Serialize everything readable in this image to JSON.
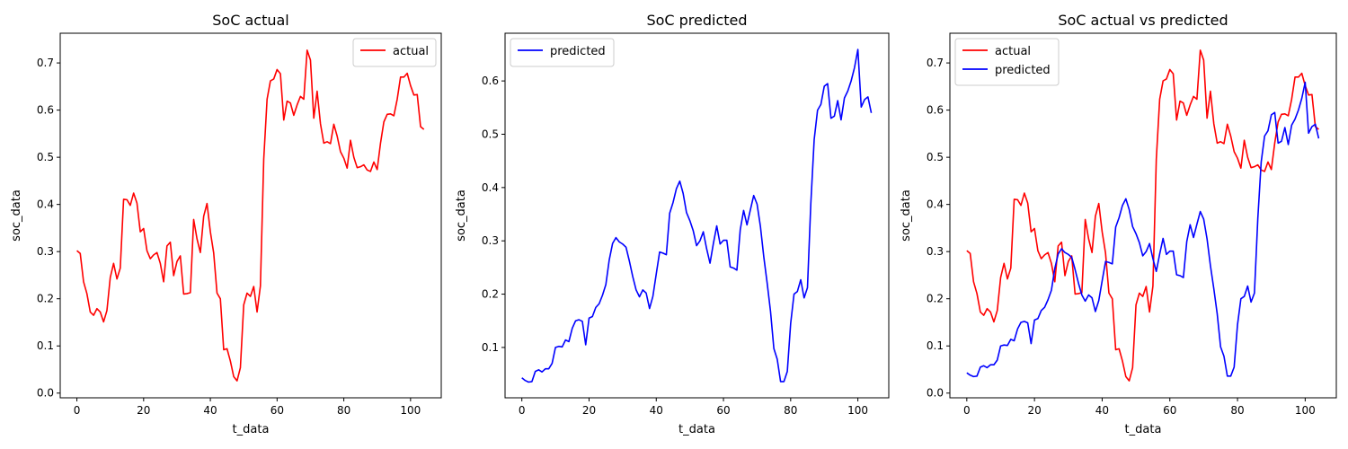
{
  "chart_data": [
    {
      "type": "line",
      "title": "SoC actual",
      "xlabel": "t_data",
      "ylabel": "soc_data",
      "xlim": [
        -5,
        109.2
      ],
      "ylim": [
        -0.01,
        0.763
      ],
      "xticks": [
        0,
        20,
        40,
        60,
        80,
        100
      ],
      "yticks": [
        0.0,
        0.1,
        0.2,
        0.3,
        0.4,
        0.5,
        0.6,
        0.7
      ],
      "grid": false,
      "legend_position": "top-right",
      "series": [
        {
          "name": "actual",
          "color": "#ff0000",
          "values": [
            0.302,
            0.296,
            0.236,
            0.211,
            0.172,
            0.165,
            0.179,
            0.172,
            0.151,
            0.175,
            0.245,
            0.275,
            0.242,
            0.265,
            0.411,
            0.41,
            0.398,
            0.424,
            0.403,
            0.342,
            0.349,
            0.302,
            0.285,
            0.293,
            0.298,
            0.275,
            0.236,
            0.312,
            0.32,
            0.249,
            0.279,
            0.291,
            0.21,
            0.211,
            0.213,
            0.368,
            0.327,
            0.298,
            0.375,
            0.402,
            0.342,
            0.297,
            0.212,
            0.2,
            0.092,
            0.094,
            0.068,
            0.035,
            0.026,
            0.054,
            0.187,
            0.212,
            0.205,
            0.226,
            0.172,
            0.227,
            0.496,
            0.623,
            0.662,
            0.666,
            0.686,
            0.677,
            0.579,
            0.619,
            0.615,
            0.589,
            0.611,
            0.629,
            0.623,
            0.727,
            0.706,
            0.583,
            0.64,
            0.571,
            0.53,
            0.533,
            0.529,
            0.57,
            0.545,
            0.512,
            0.498,
            0.477,
            0.536,
            0.5,
            0.478,
            0.48,
            0.484,
            0.473,
            0.47,
            0.49,
            0.474,
            0.53,
            0.575,
            0.591,
            0.592,
            0.588,
            0.623,
            0.67,
            0.67,
            0.678,
            0.652,
            0.632,
            0.633,
            0.565,
            0.559
          ]
        }
      ]
    },
    {
      "type": "line",
      "title": "SoC predicted",
      "xlabel": "t_data",
      "ylabel": "soc_data",
      "xlim": [
        -5,
        109.2
      ],
      "ylim": [
        0.0055,
        0.6895
      ],
      "xticks": [
        0,
        20,
        40,
        60,
        80,
        100
      ],
      "yticks": [
        0.1,
        0.2,
        0.3,
        0.4,
        0.5,
        0.6
      ],
      "grid": false,
      "legend_position": "top-left",
      "series": [
        {
          "name": "predicted",
          "color": "#0000ff",
          "values": [
            0.043,
            0.038,
            0.035,
            0.036,
            0.055,
            0.058,
            0.054,
            0.06,
            0.06,
            0.07,
            0.1,
            0.102,
            0.101,
            0.114,
            0.111,
            0.136,
            0.15,
            0.152,
            0.149,
            0.105,
            0.155,
            0.158,
            0.175,
            0.182,
            0.198,
            0.218,
            0.264,
            0.295,
            0.306,
            0.298,
            0.294,
            0.288,
            0.262,
            0.233,
            0.208,
            0.195,
            0.208,
            0.202,
            0.173,
            0.196,
            0.238,
            0.279,
            0.277,
            0.274,
            0.352,
            0.372,
            0.398,
            0.412,
            0.389,
            0.353,
            0.338,
            0.319,
            0.291,
            0.3,
            0.317,
            0.285,
            0.258,
            0.295,
            0.328,
            0.294,
            0.301,
            0.301,
            0.251,
            0.249,
            0.245,
            0.321,
            0.357,
            0.33,
            0.358,
            0.385,
            0.369,
            0.327,
            0.27,
            0.221,
            0.168,
            0.098,
            0.078,
            0.036,
            0.036,
            0.055,
            0.145,
            0.2,
            0.205,
            0.227,
            0.193,
            0.212,
            0.37,
            0.49,
            0.545,
            0.556,
            0.59,
            0.595,
            0.53,
            0.534,
            0.563,
            0.527,
            0.568,
            0.581,
            0.6,
            0.625,
            0.659,
            0.551,
            0.565,
            0.57,
            0.54
          ]
        }
      ]
    },
    {
      "type": "line",
      "title": "SoC actual vs predicted",
      "xlabel": "t_data",
      "ylabel": "soc_data",
      "xlim": [
        -5,
        109.2
      ],
      "ylim": [
        -0.01,
        0.763
      ],
      "xticks": [
        0,
        20,
        40,
        60,
        80,
        100
      ],
      "yticks": [
        0.0,
        0.1,
        0.2,
        0.3,
        0.4,
        0.5,
        0.6,
        0.7
      ],
      "grid": false,
      "legend_position": "top-left",
      "series": [
        {
          "name": "actual",
          "color": "#ff0000",
          "values": [
            0.302,
            0.296,
            0.236,
            0.211,
            0.172,
            0.165,
            0.179,
            0.172,
            0.151,
            0.175,
            0.245,
            0.275,
            0.242,
            0.265,
            0.411,
            0.41,
            0.398,
            0.424,
            0.403,
            0.342,
            0.349,
            0.302,
            0.285,
            0.293,
            0.298,
            0.275,
            0.236,
            0.312,
            0.32,
            0.249,
            0.279,
            0.291,
            0.21,
            0.211,
            0.213,
            0.368,
            0.327,
            0.298,
            0.375,
            0.402,
            0.342,
            0.297,
            0.212,
            0.2,
            0.092,
            0.094,
            0.068,
            0.035,
            0.026,
            0.054,
            0.187,
            0.212,
            0.205,
            0.226,
            0.172,
            0.227,
            0.496,
            0.623,
            0.662,
            0.666,
            0.686,
            0.677,
            0.579,
            0.619,
            0.615,
            0.589,
            0.611,
            0.629,
            0.623,
            0.727,
            0.706,
            0.583,
            0.64,
            0.571,
            0.53,
            0.533,
            0.529,
            0.57,
            0.545,
            0.512,
            0.498,
            0.477,
            0.536,
            0.5,
            0.478,
            0.48,
            0.484,
            0.473,
            0.47,
            0.49,
            0.474,
            0.53,
            0.575,
            0.591,
            0.592,
            0.588,
            0.623,
            0.67,
            0.67,
            0.678,
            0.652,
            0.632,
            0.633,
            0.565,
            0.559
          ]
        },
        {
          "name": "predicted",
          "color": "#0000ff",
          "values": [
            0.043,
            0.038,
            0.035,
            0.036,
            0.055,
            0.058,
            0.054,
            0.06,
            0.06,
            0.07,
            0.1,
            0.102,
            0.101,
            0.114,
            0.111,
            0.136,
            0.15,
            0.152,
            0.149,
            0.105,
            0.155,
            0.158,
            0.175,
            0.182,
            0.198,
            0.218,
            0.264,
            0.295,
            0.306,
            0.298,
            0.294,
            0.288,
            0.262,
            0.233,
            0.208,
            0.195,
            0.208,
            0.202,
            0.173,
            0.196,
            0.238,
            0.279,
            0.277,
            0.274,
            0.352,
            0.372,
            0.398,
            0.412,
            0.389,
            0.353,
            0.338,
            0.319,
            0.291,
            0.3,
            0.317,
            0.285,
            0.258,
            0.295,
            0.328,
            0.294,
            0.301,
            0.301,
            0.251,
            0.249,
            0.245,
            0.321,
            0.357,
            0.33,
            0.358,
            0.385,
            0.369,
            0.327,
            0.27,
            0.221,
            0.168,
            0.098,
            0.078,
            0.036,
            0.036,
            0.055,
            0.145,
            0.2,
            0.205,
            0.227,
            0.193,
            0.212,
            0.37,
            0.49,
            0.545,
            0.556,
            0.59,
            0.595,
            0.53,
            0.534,
            0.563,
            0.527,
            0.568,
            0.581,
            0.6,
            0.625,
            0.659,
            0.551,
            0.565,
            0.57,
            0.54
          ]
        }
      ]
    }
  ]
}
